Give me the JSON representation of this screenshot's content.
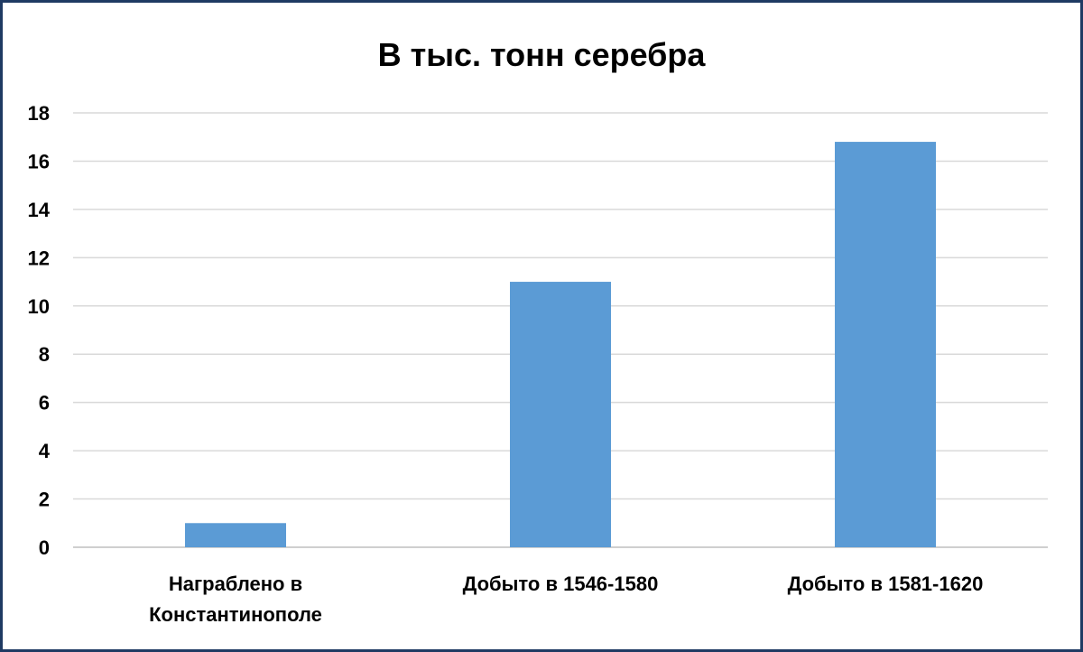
{
  "chart_data": {
    "type": "bar",
    "title": "В тыс. тонн серебра",
    "xlabel": "",
    "ylabel": "",
    "categories": [
      [
        "Награблено в",
        "Константинополе"
      ],
      [
        "Добыто в 1546-1580"
      ],
      [
        "Добыто в 1581-1620"
      ]
    ],
    "values": [
      1,
      11,
      16.8
    ],
    "ylim": [
      0,
      18
    ],
    "yticks": [
      "0",
      "2",
      "4",
      "6",
      "8",
      "10",
      "12",
      "14",
      "16",
      "18"
    ],
    "grid": true,
    "legend": "none",
    "bar_color": "#5b9bd5"
  }
}
